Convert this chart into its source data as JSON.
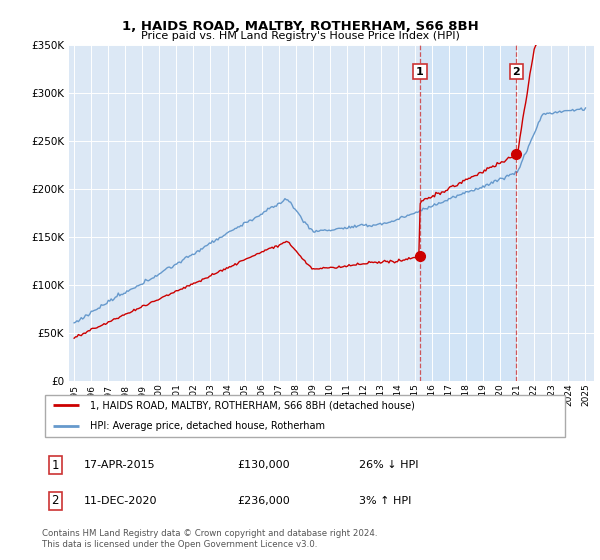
{
  "title": "1, HAIDS ROAD, MALTBY, ROTHERHAM, S66 8BH",
  "subtitle": "Price paid vs. HM Land Registry's House Price Index (HPI)",
  "legend_line1": "1, HAIDS ROAD, MALTBY, ROTHERHAM, S66 8BH (detached house)",
  "legend_line2": "HPI: Average price, detached house, Rotherham",
  "footnote": "Contains HM Land Registry data © Crown copyright and database right 2024.\nThis data is licensed under the Open Government Licence v3.0.",
  "sale1_label": "1",
  "sale1_date": "17-APR-2015",
  "sale1_price": "£130,000",
  "sale1_hpi": "26% ↓ HPI",
  "sale1_x": 2015.29,
  "sale1_y": 130000,
  "sale2_label": "2",
  "sale2_date": "11-DEC-2020",
  "sale2_price": "£236,000",
  "sale2_hpi": "3% ↑ HPI",
  "sale2_x": 2020.94,
  "sale2_y": 236000,
  "property_color": "#cc0000",
  "hpi_color": "#6699cc",
  "shade_color": "#d0e4f7",
  "dashed_line_color": "#cc3333",
  "ylim": [
    0,
    350000
  ],
  "xlim": [
    1994.7,
    2025.5
  ],
  "yticks": [
    0,
    50000,
    100000,
    150000,
    200000,
    250000,
    300000,
    350000
  ],
  "ytick_labels": [
    "£0",
    "£50K",
    "£100K",
    "£150K",
    "£200K",
    "£250K",
    "£300K",
    "£350K"
  ],
  "xticks": [
    1995,
    1996,
    1997,
    1998,
    1999,
    2000,
    2001,
    2002,
    2003,
    2004,
    2005,
    2006,
    2007,
    2008,
    2009,
    2010,
    2011,
    2012,
    2013,
    2014,
    2015,
    2016,
    2017,
    2018,
    2019,
    2020,
    2021,
    2022,
    2023,
    2024,
    2025
  ],
  "background_color": "#dce8f5",
  "fig_bg": "#ffffff"
}
